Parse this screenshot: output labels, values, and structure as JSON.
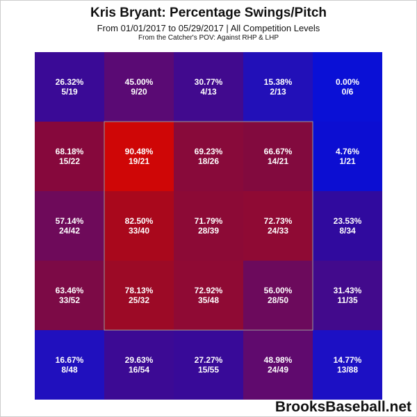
{
  "title": "Kris Bryant: Percentage Swings/Pitch",
  "subtitle": "From 01/01/2017 to 05/29/2017 | All Competition Levels",
  "subtitle2": "From the Catcher's POV:  Against RHP & LHP",
  "watermark": "BrooksBaseball.net",
  "chart_data": {
    "type": "heatmap",
    "title": "Kris Bryant: Percentage Swings/Pitch",
    "rows": 5,
    "cols": 5,
    "cells": [
      [
        {
          "pct": "26.32%",
          "count": "5/19",
          "color": "#3a0a96"
        },
        {
          "pct": "45.00%",
          "count": "9/20",
          "color": "#5a0a74"
        },
        {
          "pct": "30.77%",
          "count": "4/13",
          "color": "#410a8e"
        },
        {
          "pct": "15.38%",
          "count": "2/13",
          "color": "#2210b8"
        },
        {
          "pct": "0.00%",
          "count": "0/6",
          "color": "#0a10d6"
        }
      ],
      [
        {
          "pct": "68.18%",
          "count": "15/22",
          "color": "#86083c"
        },
        {
          "pct": "90.48%",
          "count": "19/21",
          "color": "#cf0606"
        },
        {
          "pct": "69.23%",
          "count": "18/26",
          "color": "#880a3a"
        },
        {
          "pct": "66.67%",
          "count": "14/21",
          "color": "#820a3e"
        },
        {
          "pct": "4.76%",
          "count": "1/21",
          "color": "#0c0ed2"
        }
      ],
      [
        {
          "pct": "57.14%",
          "count": "24/42",
          "color": "#6e0a5a"
        },
        {
          "pct": "82.50%",
          "count": "33/40",
          "color": "#a9081c"
        },
        {
          "pct": "71.79%",
          "count": "28/39",
          "color": "#8c0a36"
        },
        {
          "pct": "72.73%",
          "count": "24/33",
          "color": "#8f0a34"
        },
        {
          "pct": "23.53%",
          "count": "8/34",
          "color": "#300a9e"
        }
      ],
      [
        {
          "pct": "63.46%",
          "count": "33/52",
          "color": "#7c0a46"
        },
        {
          "pct": "78.13%",
          "count": "25/32",
          "color": "#9c0a26"
        },
        {
          "pct": "72.92%",
          "count": "35/48",
          "color": "#8f0a34"
        },
        {
          "pct": "56.00%",
          "count": "28/50",
          "color": "#6c0a5c"
        },
        {
          "pct": "31.43%",
          "count": "11/35",
          "color": "#420a8c"
        }
      ],
      [
        {
          "pct": "16.67%",
          "count": "8/48",
          "color": "#2010be"
        },
        {
          "pct": "29.63%",
          "count": "16/54",
          "color": "#3c0a94"
        },
        {
          "pct": "27.27%",
          "count": "15/55",
          "color": "#380a98"
        },
        {
          "pct": "48.98%",
          "count": "24/49",
          "color": "#600a6e"
        },
        {
          "pct": "14.77%",
          "count": "13/88",
          "color": "#1c10c4"
        }
      ]
    ],
    "strike_zone": {
      "rows": [
        1,
        3
      ],
      "cols": [
        1,
        3
      ]
    }
  }
}
